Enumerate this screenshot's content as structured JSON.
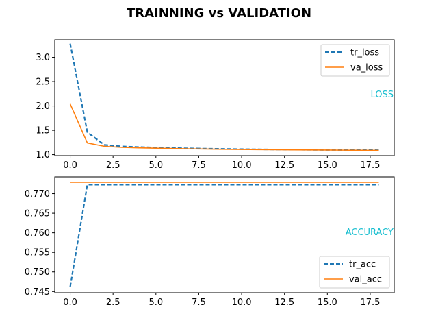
{
  "title": "TRAINNING vs VALIDATION",
  "colors": {
    "train": "#1f77b4",
    "val": "#ff7f0e",
    "annotation": "#17becf"
  },
  "chart_data": [
    {
      "type": "line",
      "annotation": "LOSS",
      "xlim": [
        -0.9,
        18.9
      ],
      "ylim": [
        0.98,
        3.36
      ],
      "xticks": [
        0,
        2.5,
        5,
        7.5,
        10,
        12.5,
        15,
        17.5
      ],
      "xtick_labels": [
        "0.0",
        "2.5",
        "5.0",
        "7.5",
        "10.0",
        "12.5",
        "15.0",
        "17.5"
      ],
      "yticks": [
        1.0,
        1.5,
        2.0,
        2.5,
        3.0
      ],
      "ytick_labels": [
        "1.0",
        "1.5",
        "2.0",
        "2.5",
        "3.0"
      ],
      "legend_loc": "upper right",
      "x": [
        0,
        1,
        2,
        3,
        4,
        5,
        6,
        7,
        8,
        9,
        10,
        11,
        12,
        13,
        14,
        15,
        16,
        17,
        18
      ],
      "series": [
        {
          "name": "tr_loss",
          "style": "dashed",
          "color": "#1f77b4",
          "values": [
            3.28,
            1.46,
            1.2,
            1.17,
            1.155,
            1.145,
            1.135,
            1.128,
            1.122,
            1.117,
            1.112,
            1.108,
            1.105,
            1.102,
            1.099,
            1.096,
            1.094,
            1.092,
            1.09
          ]
        },
        {
          "name": "va_loss",
          "style": "solid",
          "color": "#ff7f0e",
          "values": [
            2.04,
            1.24,
            1.17,
            1.15,
            1.14,
            1.132,
            1.125,
            1.119,
            1.114,
            1.11,
            1.106,
            1.103,
            1.1,
            1.097,
            1.095,
            1.093,
            1.091,
            1.089,
            1.087
          ]
        }
      ]
    },
    {
      "type": "line",
      "annotation": "ACCURACY",
      "xlim": [
        -0.9,
        18.9
      ],
      "ylim": [
        0.7447,
        0.7743
      ],
      "xticks": [
        0,
        2.5,
        5,
        7.5,
        10,
        12.5,
        15,
        17.5
      ],
      "xtick_labels": [
        "0.0",
        "2.5",
        "5.0",
        "7.5",
        "10.0",
        "12.5",
        "15.0",
        "17.5"
      ],
      "yticks": [
        0.745,
        0.75,
        0.755,
        0.76,
        0.765,
        0.77
      ],
      "ytick_labels": [
        "0.745",
        "0.750",
        "0.755",
        "0.760",
        "0.765",
        "0.770"
      ],
      "legend_loc": "lower right",
      "x": [
        0,
        1,
        2,
        3,
        4,
        5,
        6,
        7,
        8,
        9,
        10,
        11,
        12,
        13,
        14,
        15,
        16,
        17,
        18
      ],
      "series": [
        {
          "name": "tr_acc",
          "style": "dashed",
          "color": "#1f77b4",
          "values": [
            0.7462,
            0.7723,
            0.7723,
            0.7723,
            0.7723,
            0.7723,
            0.7723,
            0.7723,
            0.7723,
            0.7723,
            0.7723,
            0.7723,
            0.7723,
            0.7723,
            0.7723,
            0.7723,
            0.7723,
            0.7723,
            0.7723
          ]
        },
        {
          "name": "val_acc",
          "style": "solid",
          "color": "#ff7f0e",
          "values": [
            0.7729,
            0.7729,
            0.7729,
            0.7729,
            0.7729,
            0.7729,
            0.7729,
            0.7729,
            0.7729,
            0.7729,
            0.7729,
            0.7729,
            0.7729,
            0.7729,
            0.7729,
            0.7729,
            0.7729,
            0.7729,
            0.7729
          ]
        }
      ]
    }
  ]
}
